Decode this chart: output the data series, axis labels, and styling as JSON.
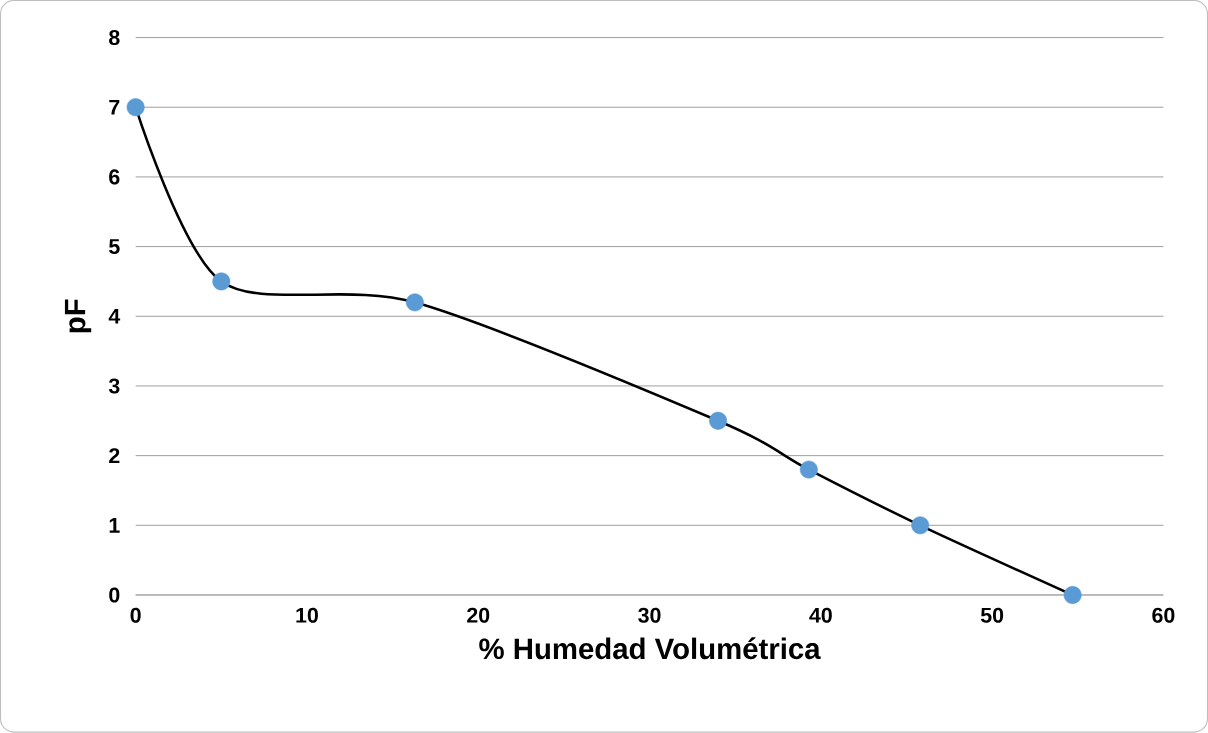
{
  "chart_data": {
    "type": "line",
    "xlabel": "% Humedad Volumétrica",
    "ylabel": "pF",
    "series": [
      {
        "type": "line",
        "color": "#000000",
        "colors": [
          "#5b9bd5",
          "#5b9bd5",
          "#5b9bd5",
          "#5b9bd5",
          "#5b9bd5",
          "#5b9bd5",
          "#5b9bd5"
        ],
        "x": [
          0,
          5,
          16.3,
          34,
          39.3,
          45.8,
          54.7
        ],
        "values": [
          7,
          4.5,
          4.2,
          2.5,
          1.8,
          1,
          0
        ]
      }
    ],
    "xlim": [
      0,
      60
    ],
    "ylim": [
      0,
      8
    ],
    "xticks": [
      0,
      10,
      20,
      30,
      40,
      50,
      60
    ],
    "yticks": [
      0,
      1,
      2,
      3,
      4,
      5,
      6,
      7,
      8
    ],
    "grid": "y",
    "marker": "circle",
    "line_style": "solid"
  }
}
